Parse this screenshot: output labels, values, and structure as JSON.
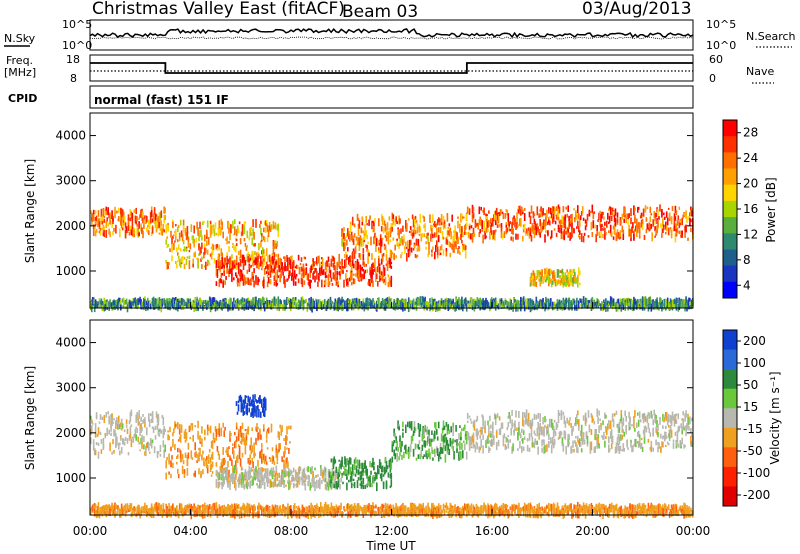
{
  "header": {
    "title": "Christmas Valley East (fitACF)",
    "beam": "Beam 03",
    "date": "03/Aug/2013"
  },
  "summary_panels": {
    "nsky_label": "N.Sky",
    "nsearch_label": "N.Search",
    "nsky_ticks": [
      "10^5",
      "10^0"
    ],
    "nsearch_ticks": [
      "10^5",
      "10^0"
    ],
    "freq_label_1": "Freq.",
    "freq_label_2": "[MHz]",
    "freq_ticks": [
      "18",
      "8"
    ],
    "nave_label": "Nave",
    "nave_ticks": [
      "60",
      "0"
    ],
    "cpid_label": "CPID",
    "cpid_text": "normal (fast) 151 IF"
  },
  "power_colorbar": {
    "label": "Power [dB]",
    "ticks": [
      "28",
      "24",
      "20",
      "16",
      "12",
      "8",
      "4"
    ],
    "colors": [
      "#ff0000",
      "#ff3000",
      "#ff7000",
      "#ffa000",
      "#ffd400",
      "#a8d400",
      "#5aaf3c",
      "#2d8a6e",
      "#1f5f8c",
      "#1a35c0",
      "#0000ff"
    ]
  },
  "velocity_colorbar": {
    "label": "Velocity [m s⁻¹]",
    "ticks": [
      "200",
      "100",
      "50",
      "15",
      "-15",
      "-50",
      "-100",
      "-200"
    ],
    "colors": [
      "#1040d0",
      "#2a6ad8",
      "#2d8a3c",
      "#6ac83c",
      "#b8b8b0",
      "#f0a020",
      "#ff6010",
      "#ff2000",
      "#e00000"
    ]
  },
  "chart_data": [
    {
      "type": "heatmap",
      "title": "Power",
      "xlabel": "Time UT",
      "ylabel": "Slant Range [km]",
      "xlim": [
        "00:00",
        "24:00"
      ],
      "ylim": [
        180,
        4500
      ],
      "x_ticks": [
        "00:00",
        "04:00",
        "08:00",
        "12:00",
        "16:00",
        "20:00",
        "00:00"
      ],
      "y_ticks": [
        1000,
        2000,
        3000,
        4000
      ],
      "bands": [
        {
          "name": "main-band-early",
          "t_start": 0.0,
          "t_end": 3.0,
          "range_km": [
            1800,
            2350
          ],
          "power_db": 22
        },
        {
          "name": "rising-band",
          "t_start": 3.0,
          "t_end": 7.5,
          "range_km": [
            1100,
            2100
          ],
          "power_db": 20
        },
        {
          "name": "low-arc",
          "t_start": 5.0,
          "t_end": 12.0,
          "range_km": [
            700,
            1300
          ],
          "power_db": 26
        },
        {
          "name": "descending-band",
          "t_start": 10.0,
          "t_end": 15.0,
          "range_km": [
            1300,
            2200
          ],
          "power_db": 22
        },
        {
          "name": "main-band-late",
          "t_start": 15.0,
          "t_end": 24.0,
          "range_km": [
            1700,
            2400
          ],
          "power_db": 24
        },
        {
          "name": "late-low-patch",
          "t_start": 17.5,
          "t_end": 19.5,
          "range_km": [
            700,
            1000
          ],
          "power_db": 18
        },
        {
          "name": "near-range-strip",
          "t_start": 0.0,
          "t_end": 24.0,
          "range_km": [
            180,
            350
          ],
          "power_db": 10
        }
      ]
    },
    {
      "type": "heatmap",
      "title": "Velocity",
      "xlabel": "Time UT",
      "ylabel": "Slant Range [km]",
      "xlim": [
        "00:00",
        "24:00"
      ],
      "ylim": [
        180,
        4500
      ],
      "x_ticks": [
        "00:00",
        "04:00",
        "08:00",
        "12:00",
        "16:00",
        "20:00",
        "00:00"
      ],
      "y_ticks": [
        1000,
        2000,
        3000,
        4000
      ],
      "bands": [
        {
          "name": "ground-scatter-early",
          "t_start": 0.0,
          "t_end": 3.0,
          "range_km": [
            1500,
            2450
          ],
          "velocity": 0
        },
        {
          "name": "orange-rise",
          "t_start": 3.0,
          "t_end": 8.0,
          "range_km": [
            1000,
            2200
          ],
          "velocity": -40
        },
        {
          "name": "blue-patch",
          "t_start": 5.8,
          "t_end": 7.0,
          "range_km": [
            2400,
            2800
          ],
          "velocity": 220
        },
        {
          "name": "grey-low-arc",
          "t_start": 5.0,
          "t_end": 10.0,
          "range_km": [
            800,
            1200
          ],
          "velocity": 0
        },
        {
          "name": "green-arc",
          "t_start": 9.5,
          "t_end": 12.0,
          "range_km": [
            800,
            1400
          ],
          "velocity": 40
        },
        {
          "name": "green-descending",
          "t_start": 12.0,
          "t_end": 15.0,
          "range_km": [
            1400,
            2200
          ],
          "velocity": 30
        },
        {
          "name": "ground-scatter-late",
          "t_start": 15.0,
          "t_end": 24.0,
          "range_km": [
            1600,
            2450
          ],
          "velocity": 0
        },
        {
          "name": "near-range-orange",
          "t_start": 0.0,
          "t_end": 24.0,
          "range_km": [
            180,
            380
          ],
          "velocity": -40
        }
      ]
    }
  ]
}
